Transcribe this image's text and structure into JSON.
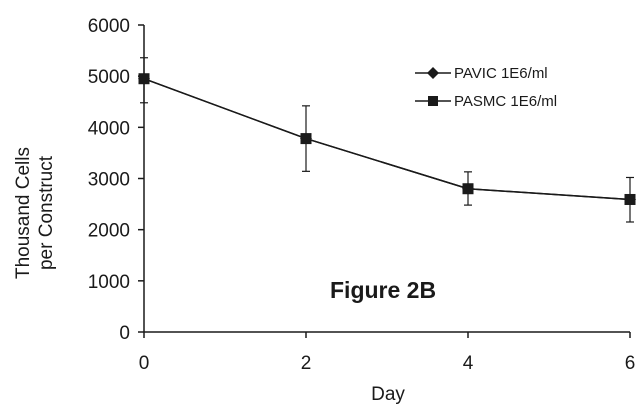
{
  "chart_data": {
    "type": "line",
    "title": "",
    "annotation": "Figure 2B",
    "xlabel": "Day",
    "ylabel_lines": [
      "Thousand Cells",
      "per Construct"
    ],
    "xlim": [
      0,
      6
    ],
    "ylim": [
      0,
      6000
    ],
    "x_ticks": [
      0,
      2,
      4,
      6
    ],
    "y_ticks": [
      0,
      1000,
      2000,
      3000,
      4000,
      5000,
      6000
    ],
    "grid": false,
    "legend_position": "top-right",
    "series": [
      {
        "name": "PAVIC 1E6/ml",
        "marker": "diamond",
        "x": [
          0,
          2,
          4,
          6
        ],
        "y": [
          4950,
          3780,
          2800,
          2590
        ],
        "err_low": [
          4480,
          3140,
          2480,
          2150
        ],
        "err_high": [
          5360,
          4420,
          3130,
          3020
        ]
      },
      {
        "name": "PASMC 1E6/ml",
        "marker": "square",
        "x": [
          0,
          2,
          4,
          6
        ],
        "y": [
          4950,
          3780,
          2800,
          2590
        ],
        "err_low": [
          4480,
          3140,
          2480,
          2150
        ],
        "err_high": [
          5360,
          4420,
          3130,
          3020
        ]
      }
    ],
    "colors": {
      "line": "#1a1a1a"
    }
  }
}
